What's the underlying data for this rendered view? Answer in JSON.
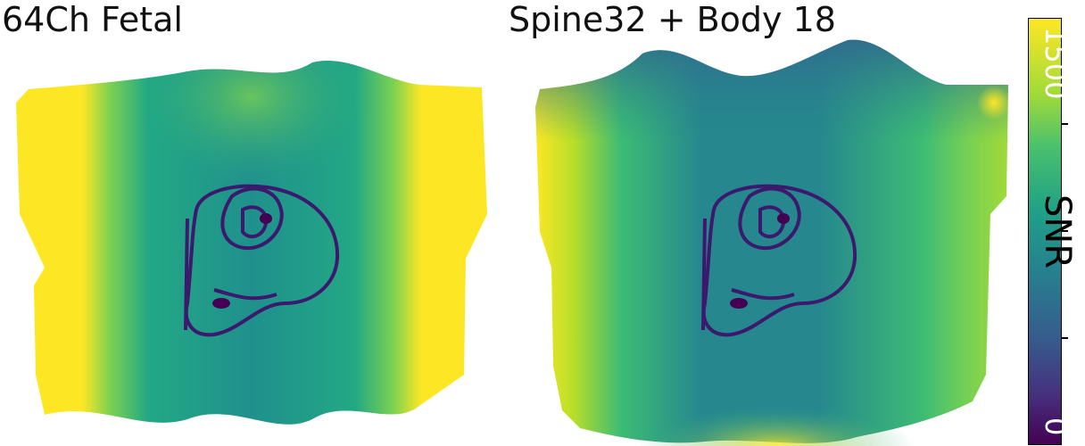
{
  "panels": [
    {
      "title": "64Ch Fetal"
    },
    {
      "title": "Spine32 + Body 18"
    }
  ],
  "colorbar": {
    "label": "SNR",
    "max_label": "1500",
    "min_label": "0",
    "colormap": "viridis",
    "colors": [
      "#440154",
      "#46327e",
      "#365c8d",
      "#277f8e",
      "#1fa187",
      "#4ac16d",
      "#a0da39",
      "#fde725"
    ]
  }
}
